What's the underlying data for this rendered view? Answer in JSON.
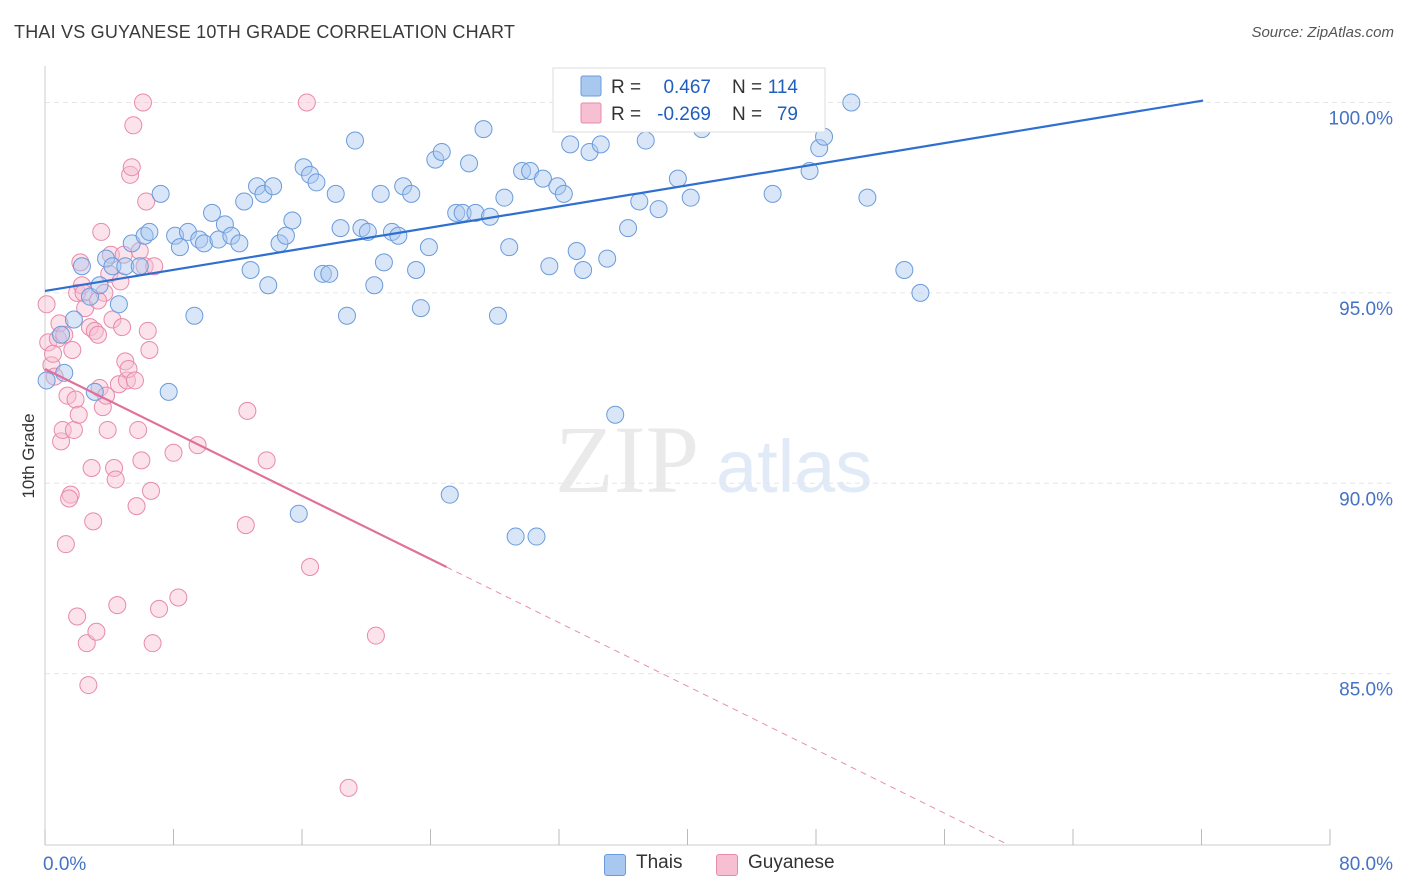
{
  "title": "THAI VS GUYANESE 10TH GRADE CORRELATION CHART",
  "source": "Source: ZipAtlas.com",
  "watermark": {
    "zip": "ZIP",
    "atlas": "atlas"
  },
  "colors": {
    "thai_fill": "#a9c8f0",
    "thai_stroke": "#6b9bdc",
    "thai_line": "#2f6fd0",
    "guy_fill": "#f7bfd2",
    "guy_stroke": "#e88aaa",
    "guy_line": "#e0709a",
    "tick_label": "#4472c4",
    "grid": "#e6e6e6"
  },
  "legend": {
    "rows": [
      {
        "r_label": "R =",
        "r_value": "0.467",
        "n_label": "N =",
        "n_value": "114"
      },
      {
        "r_label": "R =",
        "r_value": "-0.269",
        "n_label": "N =",
        "n_value": "79"
      }
    ]
  },
  "bottom_legend": {
    "thai": "Thais",
    "guyanese": "Guyanese"
  },
  "chart_data": {
    "type": "scatter",
    "title": "THAI VS GUYANESE 10TH GRADE CORRELATION CHART",
    "xlabel": "",
    "ylabel": "10th Grade",
    "xlim": [
      0,
      80
    ],
    "ylim": [
      80.5,
      100.8
    ],
    "x_tick_labels": [
      "0.0%",
      "80.0%"
    ],
    "y_tick_labels": [
      "100.0%",
      "95.0%",
      "90.0%",
      "85.0%"
    ],
    "y_ticks": [
      100,
      95,
      90,
      85
    ],
    "legend_position": "top-center",
    "series": [
      {
        "name": "Thais",
        "r": 0.467,
        "n": 114,
        "trend": {
          "x": [
            0,
            72.1
          ],
          "y": [
            95.05,
            100.05
          ]
        },
        "points": [
          [
            0.1,
            92.7
          ],
          [
            1.0,
            93.9
          ],
          [
            1.2,
            92.9
          ],
          [
            1.8,
            94.3
          ],
          [
            2.3,
            95.7
          ],
          [
            2.8,
            94.9
          ],
          [
            3.1,
            92.4
          ],
          [
            3.4,
            95.2
          ],
          [
            3.8,
            95.9
          ],
          [
            4.2,
            95.7
          ],
          [
            4.6,
            94.7
          ],
          [
            5.0,
            95.7
          ],
          [
            5.4,
            96.3
          ],
          [
            5.9,
            95.7
          ],
          [
            6.2,
            96.5
          ],
          [
            6.5,
            96.6
          ],
          [
            7.2,
            97.6
          ],
          [
            7.7,
            92.4
          ],
          [
            8.1,
            96.5
          ],
          [
            8.4,
            96.2
          ],
          [
            8.9,
            96.6
          ],
          [
            9.3,
            94.4
          ],
          [
            9.6,
            96.4
          ],
          [
            9.9,
            96.3
          ],
          [
            10.4,
            97.1
          ],
          [
            10.8,
            96.4
          ],
          [
            11.2,
            96.8
          ],
          [
            11.6,
            96.5
          ],
          [
            12.1,
            96.3
          ],
          [
            12.4,
            97.4
          ],
          [
            12.8,
            95.6
          ],
          [
            13.2,
            97.8
          ],
          [
            13.6,
            97.6
          ],
          [
            13.9,
            95.2
          ],
          [
            14.2,
            97.8
          ],
          [
            14.6,
            96.3
          ],
          [
            15.0,
            96.5
          ],
          [
            15.4,
            96.9
          ],
          [
            15.8,
            89.2
          ],
          [
            16.1,
            98.3
          ],
          [
            16.5,
            98.1
          ],
          [
            16.9,
            97.9
          ],
          [
            17.3,
            95.5
          ],
          [
            17.7,
            95.5
          ],
          [
            18.1,
            97.6
          ],
          [
            18.4,
            96.7
          ],
          [
            18.8,
            94.4
          ],
          [
            19.3,
            99.0
          ],
          [
            19.7,
            96.7
          ],
          [
            20.1,
            96.6
          ],
          [
            20.5,
            95.2
          ],
          [
            20.9,
            97.6
          ],
          [
            21.1,
            95.8
          ],
          [
            21.6,
            96.6
          ],
          [
            22.0,
            96.5
          ],
          [
            22.3,
            97.8
          ],
          [
            22.8,
            97.6
          ],
          [
            23.1,
            95.6
          ],
          [
            23.4,
            94.6
          ],
          [
            23.9,
            96.2
          ],
          [
            24.3,
            98.5
          ],
          [
            24.7,
            98.7
          ],
          [
            25.2,
            89.7
          ],
          [
            25.6,
            97.1
          ],
          [
            26.0,
            97.1
          ],
          [
            26.4,
            98.4
          ],
          [
            26.8,
            97.1
          ],
          [
            27.3,
            99.3
          ],
          [
            27.7,
            97.0
          ],
          [
            28.2,
            94.4
          ],
          [
            28.6,
            97.5
          ],
          [
            28.9,
            96.2
          ],
          [
            29.3,
            88.6
          ],
          [
            29.7,
            98.2
          ],
          [
            30.2,
            98.2
          ],
          [
            30.6,
            88.6
          ],
          [
            31.0,
            98.0
          ],
          [
            31.4,
            95.7
          ],
          [
            31.9,
            97.8
          ],
          [
            32.3,
            97.6
          ],
          [
            32.7,
            98.9
          ],
          [
            33.1,
            96.1
          ],
          [
            33.5,
            95.6
          ],
          [
            33.9,
            98.7
          ],
          [
            34.2,
            100.0
          ],
          [
            34.6,
            98.9
          ],
          [
            35.0,
            95.9
          ],
          [
            35.5,
            91.8
          ],
          [
            35.9,
            99.5
          ],
          [
            36.3,
            96.7
          ],
          [
            36.7,
            100.0
          ],
          [
            37.0,
            97.4
          ],
          [
            37.4,
            99.0
          ],
          [
            37.8,
            99.5
          ],
          [
            38.2,
            97.2
          ],
          [
            38.6,
            99.5
          ],
          [
            39.0,
            100.0
          ],
          [
            39.4,
            98.0
          ],
          [
            39.8,
            99.8
          ],
          [
            40.2,
            97.5
          ],
          [
            40.5,
            100.0
          ],
          [
            40.9,
            99.3
          ],
          [
            41.5,
            99.6
          ],
          [
            42.0,
            99.9
          ],
          [
            42.3,
            99.8
          ],
          [
            45.3,
            97.6
          ],
          [
            46.4,
            99.5
          ],
          [
            47.6,
            98.2
          ],
          [
            48.2,
            98.8
          ],
          [
            48.5,
            99.1
          ],
          [
            50.2,
            100.0
          ],
          [
            51.2,
            97.5
          ],
          [
            53.5,
            95.6
          ],
          [
            54.5,
            95.0
          ]
        ]
      },
      {
        "name": "Guyanese",
        "r": -0.269,
        "n": 79,
        "trend": {
          "x": [
            0,
            25.0
          ],
          "y": [
            93.0,
            87.8
          ]
        },
        "trend_dashed": {
          "x": [
            25.0,
            60.0
          ],
          "y": [
            87.8,
            80.5
          ]
        },
        "points": [
          [
            0.1,
            94.7
          ],
          [
            0.2,
            93.7
          ],
          [
            0.4,
            93.1
          ],
          [
            0.6,
            92.8
          ],
          [
            0.8,
            93.8
          ],
          [
            0.9,
            94.2
          ],
          [
            1.0,
            91.1
          ],
          [
            1.1,
            91.4
          ],
          [
            1.2,
            93.9
          ],
          [
            1.3,
            88.4
          ],
          [
            1.4,
            92.3
          ],
          [
            1.6,
            89.7
          ],
          [
            1.7,
            93.5
          ],
          [
            1.8,
            91.4
          ],
          [
            1.9,
            92.2
          ],
          [
            2.0,
            95.0
          ],
          [
            2.1,
            91.8
          ],
          [
            2.2,
            95.8
          ],
          [
            2.3,
            95.2
          ],
          [
            2.4,
            95.0
          ],
          [
            2.5,
            94.6
          ],
          [
            2.6,
            85.8
          ],
          [
            2.7,
            84.7
          ],
          [
            2.8,
            94.1
          ],
          [
            2.9,
            90.4
          ],
          [
            3.0,
            89.0
          ],
          [
            3.1,
            94.0
          ],
          [
            3.2,
            86.1
          ],
          [
            3.3,
            93.9
          ],
          [
            3.4,
            92.5
          ],
          [
            3.5,
            96.6
          ],
          [
            3.6,
            92.0
          ],
          [
            3.7,
            95.0
          ],
          [
            3.8,
            92.3
          ],
          [
            3.9,
            91.4
          ],
          [
            4.0,
            95.5
          ],
          [
            4.1,
            96.0
          ],
          [
            4.2,
            94.3
          ],
          [
            4.3,
            90.4
          ],
          [
            4.4,
            90.1
          ],
          [
            4.5,
            86.8
          ],
          [
            4.6,
            92.6
          ],
          [
            4.7,
            95.3
          ],
          [
            4.8,
            94.1
          ],
          [
            4.9,
            96.0
          ],
          [
            5.0,
            93.2
          ],
          [
            5.1,
            92.7
          ],
          [
            5.2,
            93.0
          ],
          [
            5.3,
            98.1
          ],
          [
            5.4,
            98.3
          ],
          [
            5.5,
            99.4
          ],
          [
            5.6,
            92.7
          ],
          [
            5.7,
            89.4
          ],
          [
            5.8,
            91.4
          ],
          [
            5.9,
            96.1
          ],
          [
            6.0,
            90.6
          ],
          [
            6.1,
            100.0
          ],
          [
            6.2,
            95.7
          ],
          [
            6.3,
            97.4
          ],
          [
            6.4,
            94.0
          ],
          [
            6.5,
            93.5
          ],
          [
            6.6,
            89.8
          ],
          [
            6.7,
            85.8
          ],
          [
            6.8,
            95.7
          ],
          [
            7.1,
            86.7
          ],
          [
            8.0,
            90.8
          ],
          [
            8.3,
            87.0
          ],
          [
            9.5,
            91.0
          ],
          [
            12.6,
            91.9
          ],
          [
            12.5,
            88.9
          ],
          [
            13.8,
            90.6
          ],
          [
            16.5,
            87.8
          ],
          [
            16.3,
            100.0
          ],
          [
            18.9,
            82.0
          ],
          [
            20.6,
            86.0
          ],
          [
            1.5,
            89.6
          ],
          [
            2.0,
            86.5
          ],
          [
            3.3,
            94.8
          ],
          [
            0.5,
            93.4
          ]
        ]
      }
    ]
  }
}
